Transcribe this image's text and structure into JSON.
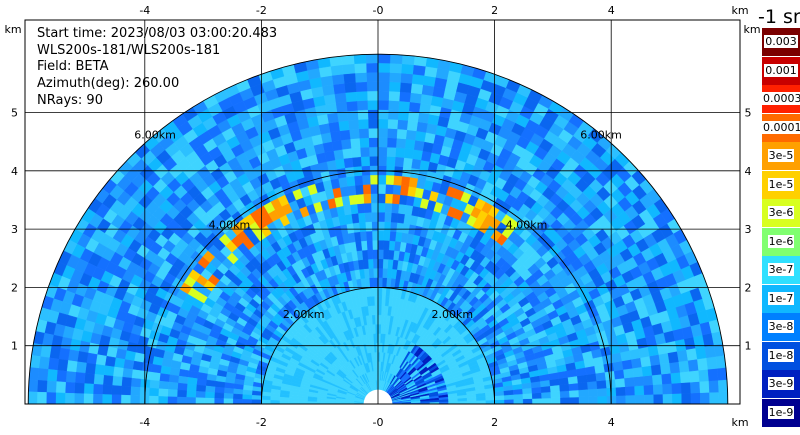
{
  "header": {
    "start_time": "Start time: 2023/08/03 03:00:20.483",
    "instrument": "WLS200s-181/WLS200s-181",
    "field": "Field: BETA",
    "azimuth": "Azimuth(deg): 260.00",
    "nrays": "NRays: 90"
  },
  "axes": {
    "x_ticks": [
      "-4",
      "-2",
      "-0",
      "2",
      "4"
    ],
    "y_ticks": [
      "1",
      "2",
      "3",
      "4",
      "5"
    ],
    "unit": "km"
  },
  "range_rings": [
    "2.00km",
    "4.00km",
    "6.00km"
  ],
  "colorbar": {
    "title": "-1 sr",
    "labels": [
      "0.003",
      "0.001",
      "0.0003",
      "0.0001",
      "3e-5",
      "1e-5",
      "3e-6",
      "1e-6",
      "3e-7",
      "1e-7",
      "3e-8",
      "1e-8",
      "3e-9",
      "1e-9"
    ],
    "colors": [
      "#7a0000",
      "#c80000",
      "#ff2000",
      "#ff6a00",
      "#ffa000",
      "#ffd000",
      "#d8ff20",
      "#80ff70",
      "#30e0ff",
      "#10b8ff",
      "#0080ff",
      "#0050e0",
      "#0020c0",
      "#000090"
    ]
  }
}
